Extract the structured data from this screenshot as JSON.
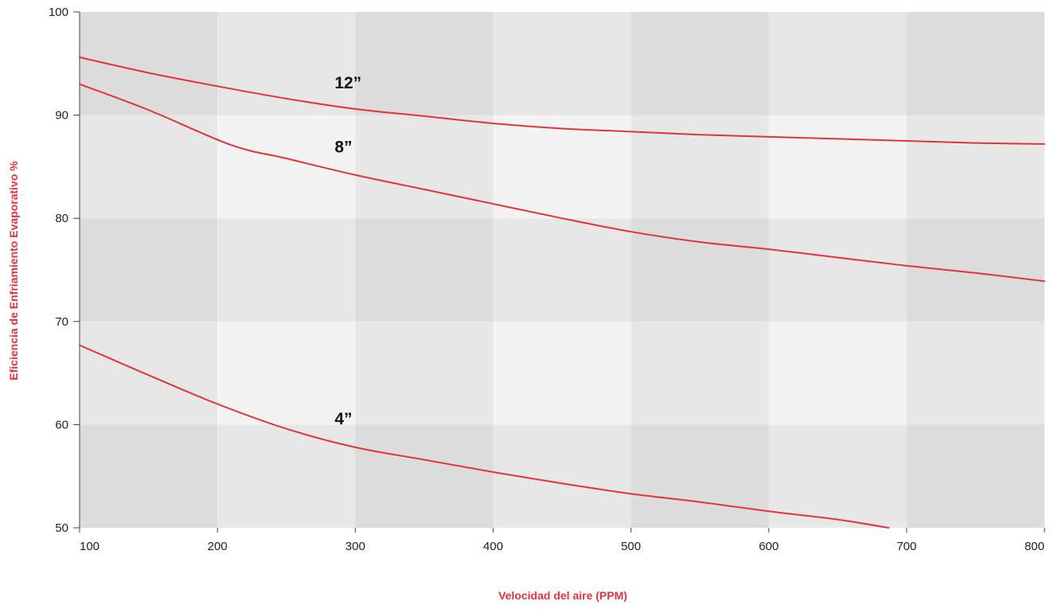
{
  "chart_data": {
    "type": "line",
    "xlabel": "Velocidad del aire (PPM)",
    "ylabel": "Eficiencia de Enfriamiento Evaporativo %",
    "xlim": [
      100,
      800
    ],
    "ylim": [
      50,
      100
    ],
    "x_ticks": [
      "100",
      "200",
      "300",
      "400",
      "500",
      "600",
      "700",
      "800"
    ],
    "y_ticks": [
      "50",
      "60",
      "70",
      "80",
      "90",
      "100"
    ],
    "grid": "checkerboard background bands",
    "colors": {
      "series": "#e2333d",
      "axis_title": "#e2333d",
      "band_dark": "#dcdcdc",
      "band_mid": "#e7e7e7",
      "band_light": "#f3f3f3"
    },
    "series": [
      {
        "name": "12”",
        "x": [
          100,
          150,
          200,
          250,
          300,
          350,
          400,
          450,
          500,
          550,
          600,
          650,
          700,
          750,
          800
        ],
        "y": [
          95.6,
          94.1,
          92.8,
          91.6,
          90.6,
          89.9,
          89.2,
          88.7,
          88.4,
          88.1,
          87.9,
          87.7,
          87.5,
          87.3,
          87.2
        ]
      },
      {
        "name": "8”",
        "x": [
          100,
          150,
          210,
          250,
          300,
          350,
          400,
          450,
          500,
          550,
          600,
          650,
          700,
          750,
          800
        ],
        "y": [
          93.0,
          90.5,
          87.1,
          85.8,
          84.2,
          82.8,
          81.4,
          80.0,
          78.7,
          77.7,
          77.0,
          76.2,
          75.4,
          74.7,
          73.9
        ]
      },
      {
        "name": "4”",
        "x": [
          100,
          150,
          200,
          250,
          300,
          350,
          400,
          450,
          500,
          550,
          600,
          650,
          687
        ],
        "y": [
          67.7,
          64.8,
          62.0,
          59.6,
          57.8,
          56.6,
          55.4,
          54.3,
          53.3,
          52.5,
          51.6,
          50.8,
          50.0
        ]
      }
    ]
  }
}
